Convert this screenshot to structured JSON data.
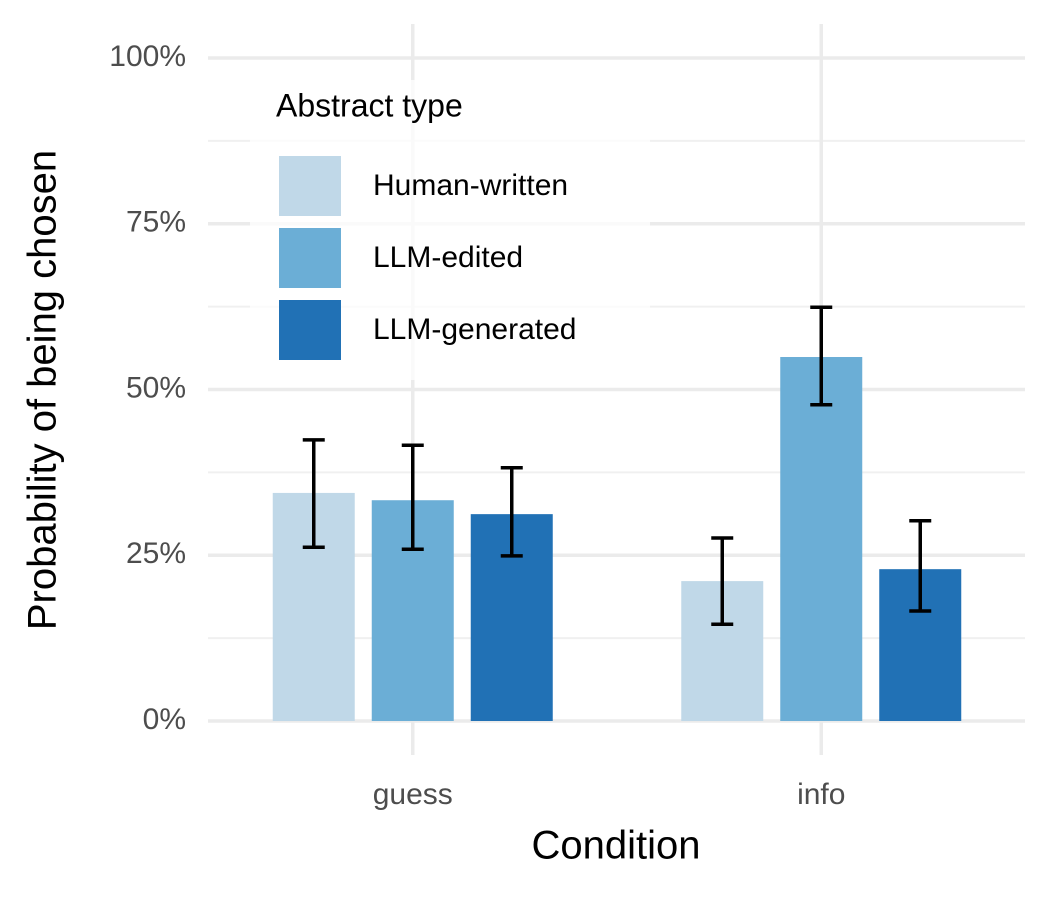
{
  "chart_data": {
    "type": "bar",
    "x_label": "Condition",
    "y_label": "Probability of being chosen",
    "categories": [
      "guess",
      "info"
    ],
    "series": [
      {
        "name": "Human-written",
        "color": "#c0d8e8",
        "values": [
          34.4,
          21.1
        ],
        "error_low": [
          26.2,
          14.6
        ],
        "error_high": [
          42.4,
          27.6
        ]
      },
      {
        "name": "LLM-edited",
        "color": "#6baed6",
        "values": [
          33.3,
          54.9
        ],
        "error_low": [
          25.9,
          47.7
        ],
        "error_high": [
          41.6,
          62.4
        ]
      },
      {
        "name": "LLM-generated",
        "color": "#2171b5",
        "values": [
          31.2,
          22.9
        ],
        "error_low": [
          24.9,
          16.6
        ],
        "error_high": [
          38.2,
          30.2
        ]
      }
    ],
    "legend_title": "Abstract type",
    "legend_position": "top-left",
    "ylim": [
      0,
      100
    ],
    "yticks": [
      {
        "value": 0,
        "label": "0%"
      },
      {
        "value": 25,
        "label": "25%"
      },
      {
        "value": 50,
        "label": "50%"
      },
      {
        "value": 75,
        "label": "75%"
      },
      {
        "value": 100,
        "label": "100%"
      }
    ],
    "minor_yticks": [
      12.5,
      37.5,
      62.5,
      87.5
    ],
    "grid": true
  }
}
